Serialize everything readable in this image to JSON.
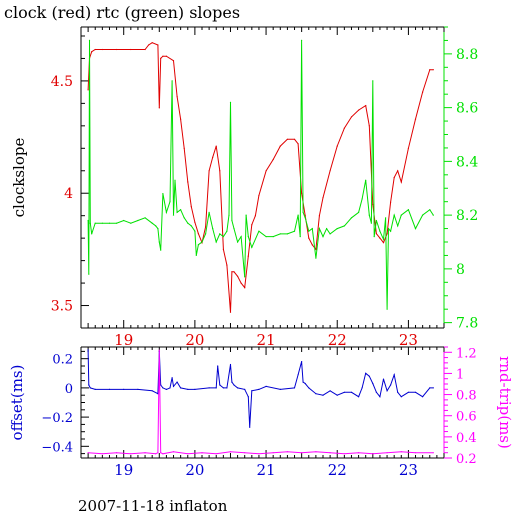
{
  "page": {
    "title": "clock (red) rtc (green) slopes",
    "footer": "2007-11-18 inflaton"
  },
  "colors": {
    "clock": "#e00000",
    "rtc": "#00e000",
    "offset": "#0000d0",
    "rtrip": "#ff00ff",
    "axis": "#000000"
  },
  "chart_data": [
    {
      "type": "line",
      "title": "clock (red) rtc (green) slopes",
      "xlabel": "",
      "ylabel": "clockslope",
      "y2label": "",
      "xlim": [
        18.4,
        23.5
      ],
      "ylim": [
        3.4,
        4.74
      ],
      "y2lim": [
        7.78,
        8.9
      ],
      "x_ticks": [
        19,
        20,
        21,
        22,
        23
      ],
      "x_tick_labels": [
        "19",
        "20",
        "21",
        "22",
        "23"
      ],
      "y_ticks": [
        3.5,
        4,
        4.5
      ],
      "y_tick_labels": [
        "3.5",
        "4",
        "4.5"
      ],
      "y2_ticks": [
        7.8,
        8,
        8.2,
        8.4,
        8.6,
        8.8
      ],
      "y2_tick_labels": [
        "7.8",
        "8",
        "8.2",
        "8.4",
        "8.6",
        "8.8"
      ],
      "series": [
        {
          "name": "clock",
          "axis": "left",
          "x": [
            18.5,
            18.52,
            18.55,
            18.6,
            18.7,
            18.9,
            19.1,
            19.3,
            19.35,
            19.4,
            19.48,
            19.5,
            19.52,
            19.55,
            19.6,
            19.7,
            19.75,
            19.8,
            19.85,
            19.9,
            19.95,
            20.0,
            20.05,
            20.1,
            20.15,
            20.2,
            20.25,
            20.3,
            20.35,
            20.4,
            20.45,
            20.5,
            20.52,
            20.55,
            20.6,
            20.65,
            20.7,
            20.75,
            20.8,
            20.85,
            20.9,
            21.0,
            21.1,
            21.2,
            21.3,
            21.4,
            21.45,
            21.5,
            21.55,
            21.6,
            21.65,
            21.7,
            21.75,
            21.8,
            21.9,
            22.0,
            22.1,
            22.2,
            22.3,
            22.4,
            22.45,
            22.5,
            22.55,
            22.6,
            22.65,
            22.7,
            22.75,
            22.8,
            22.85,
            22.9,
            23.0,
            23.1,
            23.2,
            23.3,
            23.35
          ],
          "values": [
            4.46,
            4.6,
            4.63,
            4.64,
            4.64,
            4.64,
            4.64,
            4.64,
            4.66,
            4.67,
            4.66,
            4.38,
            4.6,
            4.61,
            4.61,
            4.59,
            4.43,
            4.33,
            4.2,
            4.05,
            3.94,
            3.87,
            3.82,
            3.78,
            3.85,
            4.1,
            4.16,
            4.21,
            4.1,
            3.75,
            3.68,
            3.47,
            3.65,
            3.65,
            3.63,
            3.6,
            3.58,
            3.72,
            3.86,
            3.9,
            3.99,
            4.1,
            4.15,
            4.21,
            4.24,
            4.24,
            4.22,
            4.0,
            3.9,
            3.8,
            3.77,
            3.75,
            3.9,
            3.98,
            4.1,
            4.21,
            4.29,
            4.34,
            4.37,
            4.39,
            4.3,
            3.95,
            3.82,
            3.8,
            3.78,
            3.82,
            3.96,
            4.07,
            4.1,
            4.05,
            4.2,
            4.33,
            4.45,
            4.55,
            4.55
          ]
        },
        {
          "name": "rtc",
          "axis": "right",
          "x": [
            18.5,
            18.51,
            18.52,
            18.53,
            18.55,
            18.6,
            18.7,
            18.8,
            18.9,
            19.0,
            19.1,
            19.2,
            19.3,
            19.4,
            19.45,
            19.48,
            19.5,
            19.52,
            19.55,
            19.6,
            19.65,
            19.68,
            19.7,
            19.72,
            19.75,
            19.8,
            19.85,
            19.9,
            19.95,
            20.0,
            20.02,
            20.05,
            20.1,
            20.15,
            20.2,
            20.25,
            20.3,
            20.35,
            20.4,
            20.45,
            20.48,
            20.5,
            20.52,
            20.55,
            20.6,
            20.65,
            20.7,
            20.72,
            20.75,
            20.8,
            20.9,
            21.0,
            21.1,
            21.2,
            21.3,
            21.4,
            21.45,
            21.48,
            21.5,
            21.52,
            21.55,
            21.6,
            21.65,
            21.7,
            21.75,
            21.8,
            21.85,
            21.9,
            22.0,
            22.1,
            22.2,
            22.3,
            22.35,
            22.4,
            22.45,
            22.48,
            22.5,
            22.52,
            22.55,
            22.6,
            22.65,
            22.68,
            22.7,
            22.72,
            22.75,
            22.8,
            22.85,
            22.9,
            23.0,
            23.1,
            23.2,
            23.3,
            23.35
          ],
          "values": [
            8.18,
            7.98,
            8.85,
            8.17,
            8.13,
            8.17,
            8.17,
            8.17,
            8.17,
            8.18,
            8.17,
            8.18,
            8.19,
            8.17,
            8.16,
            8.15,
            8.1,
            8.07,
            8.28,
            8.21,
            8.25,
            8.7,
            8.2,
            8.33,
            8.21,
            8.22,
            8.19,
            8.17,
            8.16,
            8.14,
            8.05,
            8.09,
            8.1,
            8.13,
            8.21,
            8.15,
            8.1,
            8.13,
            8.12,
            8.14,
            8.2,
            8.62,
            8.18,
            8.15,
            8.1,
            8.12,
            7.97,
            8.2,
            8.12,
            8.08,
            8.14,
            8.12,
            8.12,
            8.13,
            8.13,
            8.14,
            8.2,
            8.12,
            8.85,
            8.21,
            8.19,
            8.14,
            8.15,
            8.04,
            8.15,
            8.12,
            8.15,
            8.13,
            8.15,
            8.16,
            8.19,
            8.21,
            8.26,
            8.33,
            8.2,
            8.17,
            8.7,
            8.12,
            8.18,
            8.14,
            8.11,
            8.19,
            7.85,
            8.15,
            8.14,
            8.2,
            8.16,
            8.2,
            8.22,
            8.15,
            8.2,
            8.22,
            8.2
          ]
        }
      ]
    },
    {
      "type": "line",
      "title": "",
      "xlabel": "",
      "ylabel": "offset(ms)",
      "y2label": "rnd-trip(ms)",
      "xlim": [
        18.4,
        23.5
      ],
      "ylim": [
        -0.48,
        0.28
      ],
      "y2lim": [
        0.2,
        1.25
      ],
      "x_ticks": [
        19,
        20,
        21,
        22,
        23
      ],
      "x_tick_labels": [
        "19",
        "20",
        "21",
        "22",
        "23"
      ],
      "y_ticks": [
        -0.4,
        -0.2,
        0,
        0.2
      ],
      "y_tick_labels": [
        "−0.4",
        "−0.2",
        "0",
        "0.2"
      ],
      "y2_ticks": [
        0.2,
        0.4,
        0.6,
        0.8,
        1,
        1.2
      ],
      "y2_tick_labels": [
        "0.2",
        "0.4",
        "0.6",
        "0.8",
        "1",
        "1.2"
      ],
      "series": [
        {
          "name": "offset",
          "axis": "left",
          "x": [
            18.5,
            18.51,
            18.53,
            18.6,
            18.8,
            19.0,
            19.2,
            19.4,
            19.48,
            19.5,
            19.52,
            19.55,
            19.6,
            19.65,
            19.68,
            19.7,
            19.75,
            19.8,
            19.9,
            20.0,
            20.2,
            20.3,
            20.32,
            20.35,
            20.4,
            20.45,
            20.5,
            20.52,
            20.55,
            20.6,
            20.7,
            20.75,
            20.77,
            20.8,
            20.9,
            21.0,
            21.2,
            21.4,
            21.45,
            21.5,
            21.52,
            21.55,
            21.6,
            21.7,
            21.8,
            21.9,
            22.0,
            22.1,
            22.2,
            22.3,
            22.35,
            22.4,
            22.45,
            22.5,
            22.55,
            22.6,
            22.65,
            22.7,
            22.75,
            22.8,
            22.85,
            22.9,
            23.0,
            23.1,
            23.2,
            23.3,
            23.35
          ],
          "values": [
            0.26,
            0.02,
            0.0,
            -0.01,
            -0.01,
            -0.01,
            -0.01,
            -0.02,
            -0.04,
            0.25,
            0.02,
            0.0,
            -0.01,
            0.0,
            0.07,
            0.01,
            0.04,
            0.0,
            -0.01,
            -0.01,
            0.0,
            0.0,
            0.15,
            0.02,
            0.0,
            0.0,
            0.16,
            0.04,
            0.02,
            0.0,
            -0.01,
            -0.06,
            -0.27,
            -0.02,
            -0.01,
            0.01,
            -0.01,
            0.0,
            0.09,
            0.18,
            0.04,
            0.03,
            0.0,
            -0.04,
            -0.05,
            -0.02,
            -0.05,
            -0.03,
            -0.03,
            -0.06,
            0.0,
            0.1,
            0.08,
            0.03,
            -0.03,
            -0.06,
            0.06,
            -0.02,
            0.02,
            0.09,
            -0.03,
            -0.06,
            -0.03,
            -0.03,
            -0.06,
            0.0,
            0.0
          ]
        },
        {
          "name": "rnd-trip",
          "axis": "right",
          "x": [
            18.5,
            18.7,
            18.9,
            19.1,
            19.3,
            19.45,
            19.48,
            19.5,
            19.52,
            19.55,
            19.7,
            19.9,
            20.1,
            20.3,
            20.5,
            20.7,
            20.9,
            21.1,
            21.3,
            21.5,
            21.7,
            21.9,
            22.1,
            22.3,
            22.5,
            22.7,
            22.9,
            23.1,
            23.35
          ],
          "values": [
            0.25,
            0.24,
            0.25,
            0.24,
            0.25,
            0.24,
            0.25,
            1.22,
            0.25,
            0.24,
            0.26,
            0.24,
            0.25,
            0.24,
            0.26,
            0.25,
            0.24,
            0.25,
            0.26,
            0.25,
            0.26,
            0.25,
            0.24,
            0.25,
            0.24,
            0.25,
            0.26,
            0.25,
            0.25
          ]
        }
      ]
    }
  ]
}
